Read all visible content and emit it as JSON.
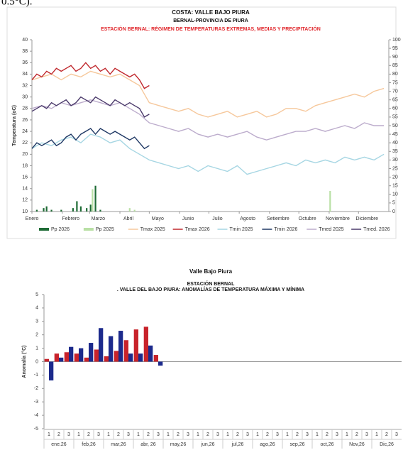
{
  "intro_fragment": "0.5°C).",
  "chart_data": [
    {
      "type": "line",
      "title": "COSTA: VALLE BAJO PIURA",
      "subtitle": "BERNAL-PROVINCIA DE PIURA",
      "heading": "ESTACIÓN BERNAL: RÉGIMEN DE TEMPERATURAS EXTREMAS, MEDIAS Y PRECIPITACIÓN",
      "ylabel": "Temperatura (oC)",
      "xlim": [
        0,
        365
      ],
      "xticks": [
        {
          "value": 0,
          "label": "Enero"
        },
        {
          "value": 31,
          "label": "Febrero"
        },
        {
          "value": 59,
          "label": "Marzo"
        },
        {
          "value": 90,
          "label": "Abril"
        },
        {
          "value": 120,
          "label": "Mayo"
        },
        {
          "value": 151,
          "label": "Junio"
        },
        {
          "value": 181,
          "label": "Julio"
        },
        {
          "value": 212,
          "label": "Agosto"
        },
        {
          "value": 243,
          "label": "Setiembre"
        },
        {
          "value": 273,
          "label": "Octubre"
        },
        {
          "value": 304,
          "label": "Noviembre"
        },
        {
          "value": 334,
          "label": "Diciembre"
        }
      ],
      "ylim": [
        10,
        40
      ],
      "yticks": [
        10,
        12,
        14,
        16,
        18,
        20,
        22,
        24,
        26,
        28,
        30,
        32,
        34,
        36,
        38,
        40
      ],
      "y2lim": [
        0,
        100
      ],
      "y2ticks": [
        0,
        5,
        10,
        15,
        20,
        25,
        30,
        35,
        40,
        45,
        50,
        55,
        60,
        65,
        70,
        75,
        80,
        85,
        90,
        95,
        100
      ],
      "series": [
        {
          "name": "Pp 2026",
          "type": "bar",
          "axis": "y2",
          "color": "#1e6b35",
          "x": [
            5,
            12,
            15,
            20,
            30,
            42,
            46,
            50,
            56,
            60,
            65,
            70
          ],
          "values": [
            1,
            2,
            3,
            1,
            1,
            2,
            6,
            3,
            2,
            4,
            15,
            1
          ]
        },
        {
          "name": "Pp 2025",
          "type": "bar",
          "axis": "y2",
          "color": "#b9e0a5",
          "x": [
            62,
            100,
            105,
            305
          ],
          "values": [
            13,
            2,
            1,
            12
          ]
        },
        {
          "name": "Tmax 2025",
          "color": "#f6c89c",
          "x": [
            0,
            10,
            20,
            30,
            40,
            50,
            60,
            70,
            80,
            90,
            100,
            110,
            120,
            130,
            140,
            150,
            160,
            170,
            180,
            190,
            200,
            210,
            220,
            230,
            240,
            250,
            260,
            270,
            280,
            290,
            300,
            310,
            320,
            330,
            340,
            350,
            360
          ],
          "values": [
            33,
            33.5,
            34,
            33,
            34,
            33.5,
            34.5,
            34,
            33.5,
            34,
            33,
            32,
            29,
            28.5,
            28,
            27.5,
            28,
            27,
            26.5,
            27,
            27.5,
            26.5,
            27,
            27.5,
            26.5,
            27,
            28,
            28,
            27.5,
            28.5,
            29,
            29.5,
            30,
            30.5,
            30,
            31,
            31.5
          ]
        },
        {
          "name": "Tmax 2026",
          "color": "#c0282d",
          "x": [
            0,
            5,
            10,
            15,
            20,
            25,
            30,
            35,
            40,
            45,
            50,
            55,
            60,
            65,
            70,
            75,
            80,
            85,
            90,
            95,
            100,
            105,
            110,
            115,
            120
          ],
          "values": [
            33,
            34,
            33.5,
            34.5,
            34,
            35,
            34.5,
            35,
            35.5,
            34.5,
            35,
            36,
            35,
            35.5,
            34.5,
            35,
            34,
            35,
            34.5,
            34,
            33.5,
            34,
            33,
            31.5,
            32
          ]
        },
        {
          "name": "Tmin 2025",
          "color": "#a6d6e3",
          "x": [
            0,
            10,
            20,
            30,
            40,
            50,
            60,
            70,
            80,
            90,
            100,
            110,
            120,
            130,
            140,
            150,
            160,
            170,
            180,
            190,
            200,
            210,
            220,
            230,
            240,
            250,
            260,
            270,
            280,
            290,
            300,
            310,
            320,
            330,
            340,
            350,
            360
          ],
          "values": [
            21,
            22,
            21.5,
            22.5,
            23,
            22,
            23.5,
            23,
            22,
            22.5,
            21,
            20,
            19,
            18.5,
            18,
            17.5,
            18,
            17,
            18,
            17.5,
            17,
            18,
            16.5,
            17,
            17.5,
            18,
            18.5,
            18,
            19,
            18.5,
            19,
            18.5,
            19.5,
            19,
            19.5,
            19,
            20
          ]
        },
        {
          "name": "Tmin 2026",
          "color": "#1f3864",
          "x": [
            0,
            5,
            10,
            15,
            20,
            25,
            30,
            35,
            40,
            45,
            50,
            55,
            60,
            65,
            70,
            75,
            80,
            85,
            90,
            95,
            100,
            105,
            110,
            115,
            120
          ],
          "values": [
            21,
            22,
            21.5,
            22,
            22.5,
            21.5,
            22,
            23,
            23.5,
            22.5,
            23.5,
            24,
            24.5,
            23.5,
            24.5,
            24,
            23.5,
            24,
            23.5,
            23,
            22.5,
            23,
            22,
            21,
            21.5
          ]
        },
        {
          "name": "Tmed 2025",
          "color": "#bcaccc",
          "x": [
            0,
            10,
            20,
            30,
            40,
            50,
            60,
            70,
            80,
            90,
            100,
            110,
            120,
            130,
            140,
            150,
            160,
            170,
            180,
            190,
            200,
            210,
            220,
            230,
            240,
            250,
            260,
            270,
            280,
            290,
            300,
            310,
            320,
            330,
            340,
            350,
            360
          ],
          "values": [
            28,
            28.5,
            28,
            29,
            28.5,
            29,
            29.5,
            29,
            28.5,
            29,
            28,
            27,
            25.5,
            25,
            24.5,
            24,
            24.5,
            23.5,
            23,
            23.5,
            23,
            23.5,
            24,
            23,
            22.5,
            23,
            23.5,
            24,
            24,
            24.5,
            24,
            24.5,
            25,
            24.5,
            25.5,
            25,
            25
          ]
        },
        {
          "name": "Tmed. 2026",
          "color": "#4b3a6b",
          "x": [
            0,
            5,
            10,
            15,
            20,
            25,
            30,
            35,
            40,
            45,
            50,
            55,
            60,
            65,
            70,
            75,
            80,
            85,
            90,
            95,
            100,
            105,
            110,
            115,
            120
          ],
          "values": [
            27.5,
            28,
            28.5,
            28,
            29,
            28.5,
            29,
            29.5,
            28.5,
            29,
            30,
            29.5,
            29,
            30,
            29.5,
            29,
            28.5,
            29.5,
            29,
            28.5,
            29,
            28.5,
            28,
            26.5,
            27
          ]
        }
      ]
    },
    {
      "type": "bar",
      "title": "Valle Bajo Piura",
      "subtitle": "ESTACIÓN BERNAL",
      "heading": ". VALLE DEL BAJO PIURA: ANOMALÍAS DE TEMPERATURA MÁXIMA Y MÍNIMA",
      "ylabel": "Anomalía (°C)",
      "ylim": [
        -5,
        5
      ],
      "yticks": [
        -5,
        -4,
        -3,
        -2,
        -1,
        0,
        1,
        2,
        3,
        4,
        5
      ],
      "categories": [
        "1",
        "2",
        "3",
        "1",
        "2",
        "3",
        "1",
        "2",
        "3",
        "1",
        "2",
        "3",
        "1",
        "2",
        "3",
        "1",
        "2",
        "3",
        "1",
        "2",
        "3",
        "1",
        "2",
        "3",
        "1",
        "2",
        "3",
        "1",
        "2",
        "3",
        "1",
        "2",
        "3",
        "1",
        "2",
        "3"
      ],
      "groups": [
        "ene.26",
        "feb,26",
        "mar,26",
        "abr, 26",
        "may,26",
        "jun,26",
        "jul,26",
        "ago,26",
        "sep,26",
        "oct,26",
        "Nov,26",
        "Dic,26"
      ],
      "series": [
        {
          "color": "#c8232b",
          "values": [
            0.2,
            0.6,
            0.7,
            0.6,
            0.3,
            0.9,
            0.4,
            0.8,
            1.6,
            2.4,
            2.6,
            0.5,
            null,
            null,
            null,
            null,
            null,
            null,
            null,
            null,
            null,
            null,
            null,
            null,
            null,
            null,
            null,
            null,
            null,
            null,
            null,
            null,
            null,
            null,
            null,
            null
          ]
        },
        {
          "color": "#1c2a8c",
          "values": [
            -1.4,
            0.3,
            1.1,
            1.0,
            1.4,
            2.5,
            1.9,
            2.3,
            0.6,
            0.6,
            1.2,
            -0.3,
            null,
            null,
            null,
            null,
            null,
            null,
            null,
            null,
            null,
            null,
            null,
            null,
            null,
            null,
            null,
            null,
            null,
            null,
            null,
            null,
            null,
            null,
            null,
            null
          ]
        }
      ]
    }
  ]
}
